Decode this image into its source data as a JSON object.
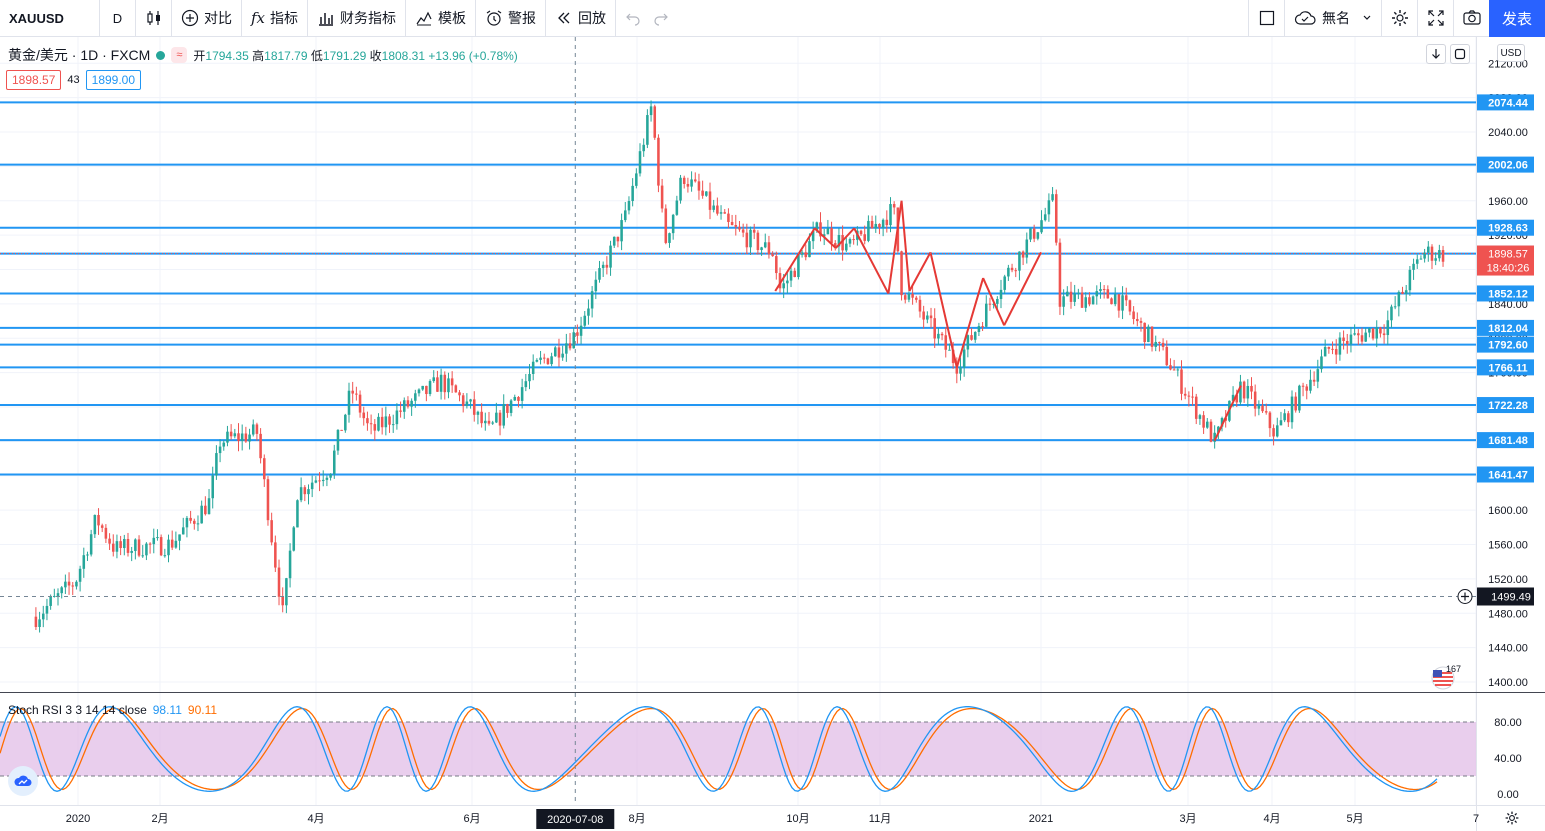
{
  "toolbar": {
    "symbol": "XAUUSD",
    "interval": "D",
    "compare": "对比",
    "indicators": "指标",
    "financials": "财务指标",
    "templates": "模板",
    "alert": "警报",
    "replay": "回放",
    "layout_name": "無名",
    "publish": "发表"
  },
  "legend": {
    "symbol_desc": "黄金/美元 · 1D · FXCM",
    "badge": "≈",
    "open_label": "开",
    "open": "1794.35",
    "high_label": "高",
    "high": "1817.79",
    "low_label": "低",
    "low": "1791.29",
    "close_label": "收",
    "close": "1808.31",
    "change": "+13.96 (+0.78%)"
  },
  "quote": {
    "bid": "1898.57",
    "spread": "43",
    "ask": "1899.00"
  },
  "currency": "USD",
  "stoch": {
    "name": "Stoch RSI 3 3 14 14 close",
    "k_value": "98.11",
    "d_value": "90.11"
  },
  "flag_count": "167",
  "colors": {
    "up": "#26a69a",
    "down": "#ef5350",
    "hline": "#2196f3",
    "pattern": "#e53935",
    "stoch_k": "#2196f3",
    "stoch_d": "#ff6d00",
    "stoch_band": "#e1bee7",
    "accent": "#2962ff"
  },
  "chart_data": {
    "type": "candlestick",
    "price_axis": {
      "ylim": [
        1380,
        2140
      ],
      "ticks": [
        1400,
        1440,
        1480,
        1520,
        1560,
        1600,
        1640,
        1680,
        1720,
        1760,
        1800,
        1840,
        1880,
        1920,
        1960,
        2000,
        2040,
        2080,
        2120
      ]
    },
    "horizontal_levels": [
      {
        "price": 2074.44,
        "label": "2074.44"
      },
      {
        "price": 2002.06,
        "label": "2002.06"
      },
      {
        "price": 1928.63,
        "label": "1928.63"
      },
      {
        "price": 1898.49,
        "label": "1898.49"
      },
      {
        "price": 1852.12,
        "label": "1852.12"
      },
      {
        "price": 1812.04,
        "label": "1812.04"
      },
      {
        "price": 1792.6,
        "label": "1792.60"
      },
      {
        "price": 1766.11,
        "label": "1766.11"
      },
      {
        "price": 1722.28,
        "label": "1722.28"
      },
      {
        "price": 1681.48,
        "label": "1681.48"
      },
      {
        "price": 1641.47,
        "label": "1641.47"
      }
    ],
    "last_price": {
      "price": 1898.57,
      "label": "1898.57",
      "countdown": "18:40:26"
    },
    "crosshair": {
      "price": 1499.49,
      "label": "1499.49",
      "date": "2020-07-08"
    },
    "time_axis": [
      "2020",
      "2月",
      "4月",
      "6月",
      "8月",
      "10月",
      "11月",
      "2021",
      "3月",
      "4月",
      "5月",
      "7"
    ],
    "price_path": [
      [
        "2019-12-16",
        1476
      ],
      [
        "2019-12-31",
        1517
      ],
      [
        "2020-01-08",
        1590
      ],
      [
        "2020-01-15",
        1555
      ],
      [
        "2020-02-05",
        1560
      ],
      [
        "2020-02-20",
        1610
      ],
      [
        "2020-02-24",
        1680
      ],
      [
        "2020-03-09",
        1690
      ],
      [
        "2020-03-19",
        1475
      ],
      [
        "2020-03-24",
        1620
      ],
      [
        "2020-04-06",
        1650
      ],
      [
        "2020-04-14",
        1740
      ],
      [
        "2020-04-21",
        1690
      ],
      [
        "2020-05-18",
        1750
      ],
      [
        "2020-05-29",
        1720
      ],
      [
        "2020-06-05",
        1690
      ],
      [
        "2020-06-24",
        1770
      ],
      [
        "2020-07-08",
        1805
      ],
      [
        "2020-07-27",
        1940
      ],
      [
        "2020-08-06",
        2070
      ],
      [
        "2020-08-11",
        1910
      ],
      [
        "2020-08-18",
        1990
      ],
      [
        "2020-09-04",
        1930
      ],
      [
        "2020-09-21",
        1900
      ],
      [
        "2020-09-24",
        1855
      ],
      [
        "2020-10-09",
        1930
      ],
      [
        "2020-10-20",
        1905
      ],
      [
        "2020-11-06",
        1950
      ],
      [
        "2020-11-09",
        1860
      ],
      [
        "2020-11-30",
        1770
      ],
      [
        "2020-12-16",
        1860
      ],
      [
        "2021-01-06",
        1960
      ],
      [
        "2021-01-08",
        1845
      ],
      [
        "2021-01-29",
        1850
      ],
      [
        "2021-02-18",
        1775
      ],
      [
        "2021-03-08",
        1680
      ],
      [
        "2021-03-18",
        1745
      ],
      [
        "2021-03-31",
        1690
      ],
      [
        "2021-04-21",
        1790
      ],
      [
        "2021-05-12",
        1815
      ],
      [
        "2021-05-26",
        1900
      ],
      [
        "2021-06-03",
        1898
      ]
    ],
    "pattern_lines": [
      {
        "from": [
          "2020-09-22",
          1855
        ],
        "to": [
          "2020-10-07",
          1928
        ]
      },
      {
        "from": [
          "2020-10-07",
          1928
        ],
        "to": [
          "2020-10-15",
          1905
        ]
      },
      {
        "from": [
          "2020-10-15",
          1905
        ],
        "to": [
          "2020-10-22",
          1928
        ]
      },
      {
        "from": [
          "2020-10-22",
          1928
        ],
        "to": [
          "2020-11-04",
          1852
        ]
      },
      {
        "from": [
          "2020-11-04",
          1852
        ],
        "to": [
          "2020-11-09",
          1960
        ]
      },
      {
        "from": [
          "2020-11-09",
          1960
        ],
        "to": [
          "2020-11-12",
          1855
        ]
      },
      {
        "from": [
          "2020-11-12",
          1855
        ],
        "to": [
          "2020-11-20",
          1900
        ]
      },
      {
        "from": [
          "2020-11-20",
          1900
        ],
        "to": [
          "2020-11-30",
          1766
        ]
      },
      {
        "from": [
          "2020-11-30",
          1766
        ],
        "to": [
          "2020-12-10",
          1870
        ]
      },
      {
        "from": [
          "2020-12-10",
          1870
        ],
        "to": [
          "2020-12-18",
          1815
        ]
      },
      {
        "from": [
          "2020-12-18",
          1815
        ],
        "to": [
          "2021-01-01",
          1900
        ]
      },
      {
        "from": [
          "2021-03-08",
          1681
        ],
        "to": [
          "2021-03-18",
          1745
        ]
      }
    ],
    "stoch_rsi": {
      "ylim": [
        0,
        100
      ],
      "ticks": [
        0,
        40,
        80
      ],
      "bands": [
        20,
        80
      ],
      "k_last": 98.11,
      "d_last": 90.11
    }
  }
}
